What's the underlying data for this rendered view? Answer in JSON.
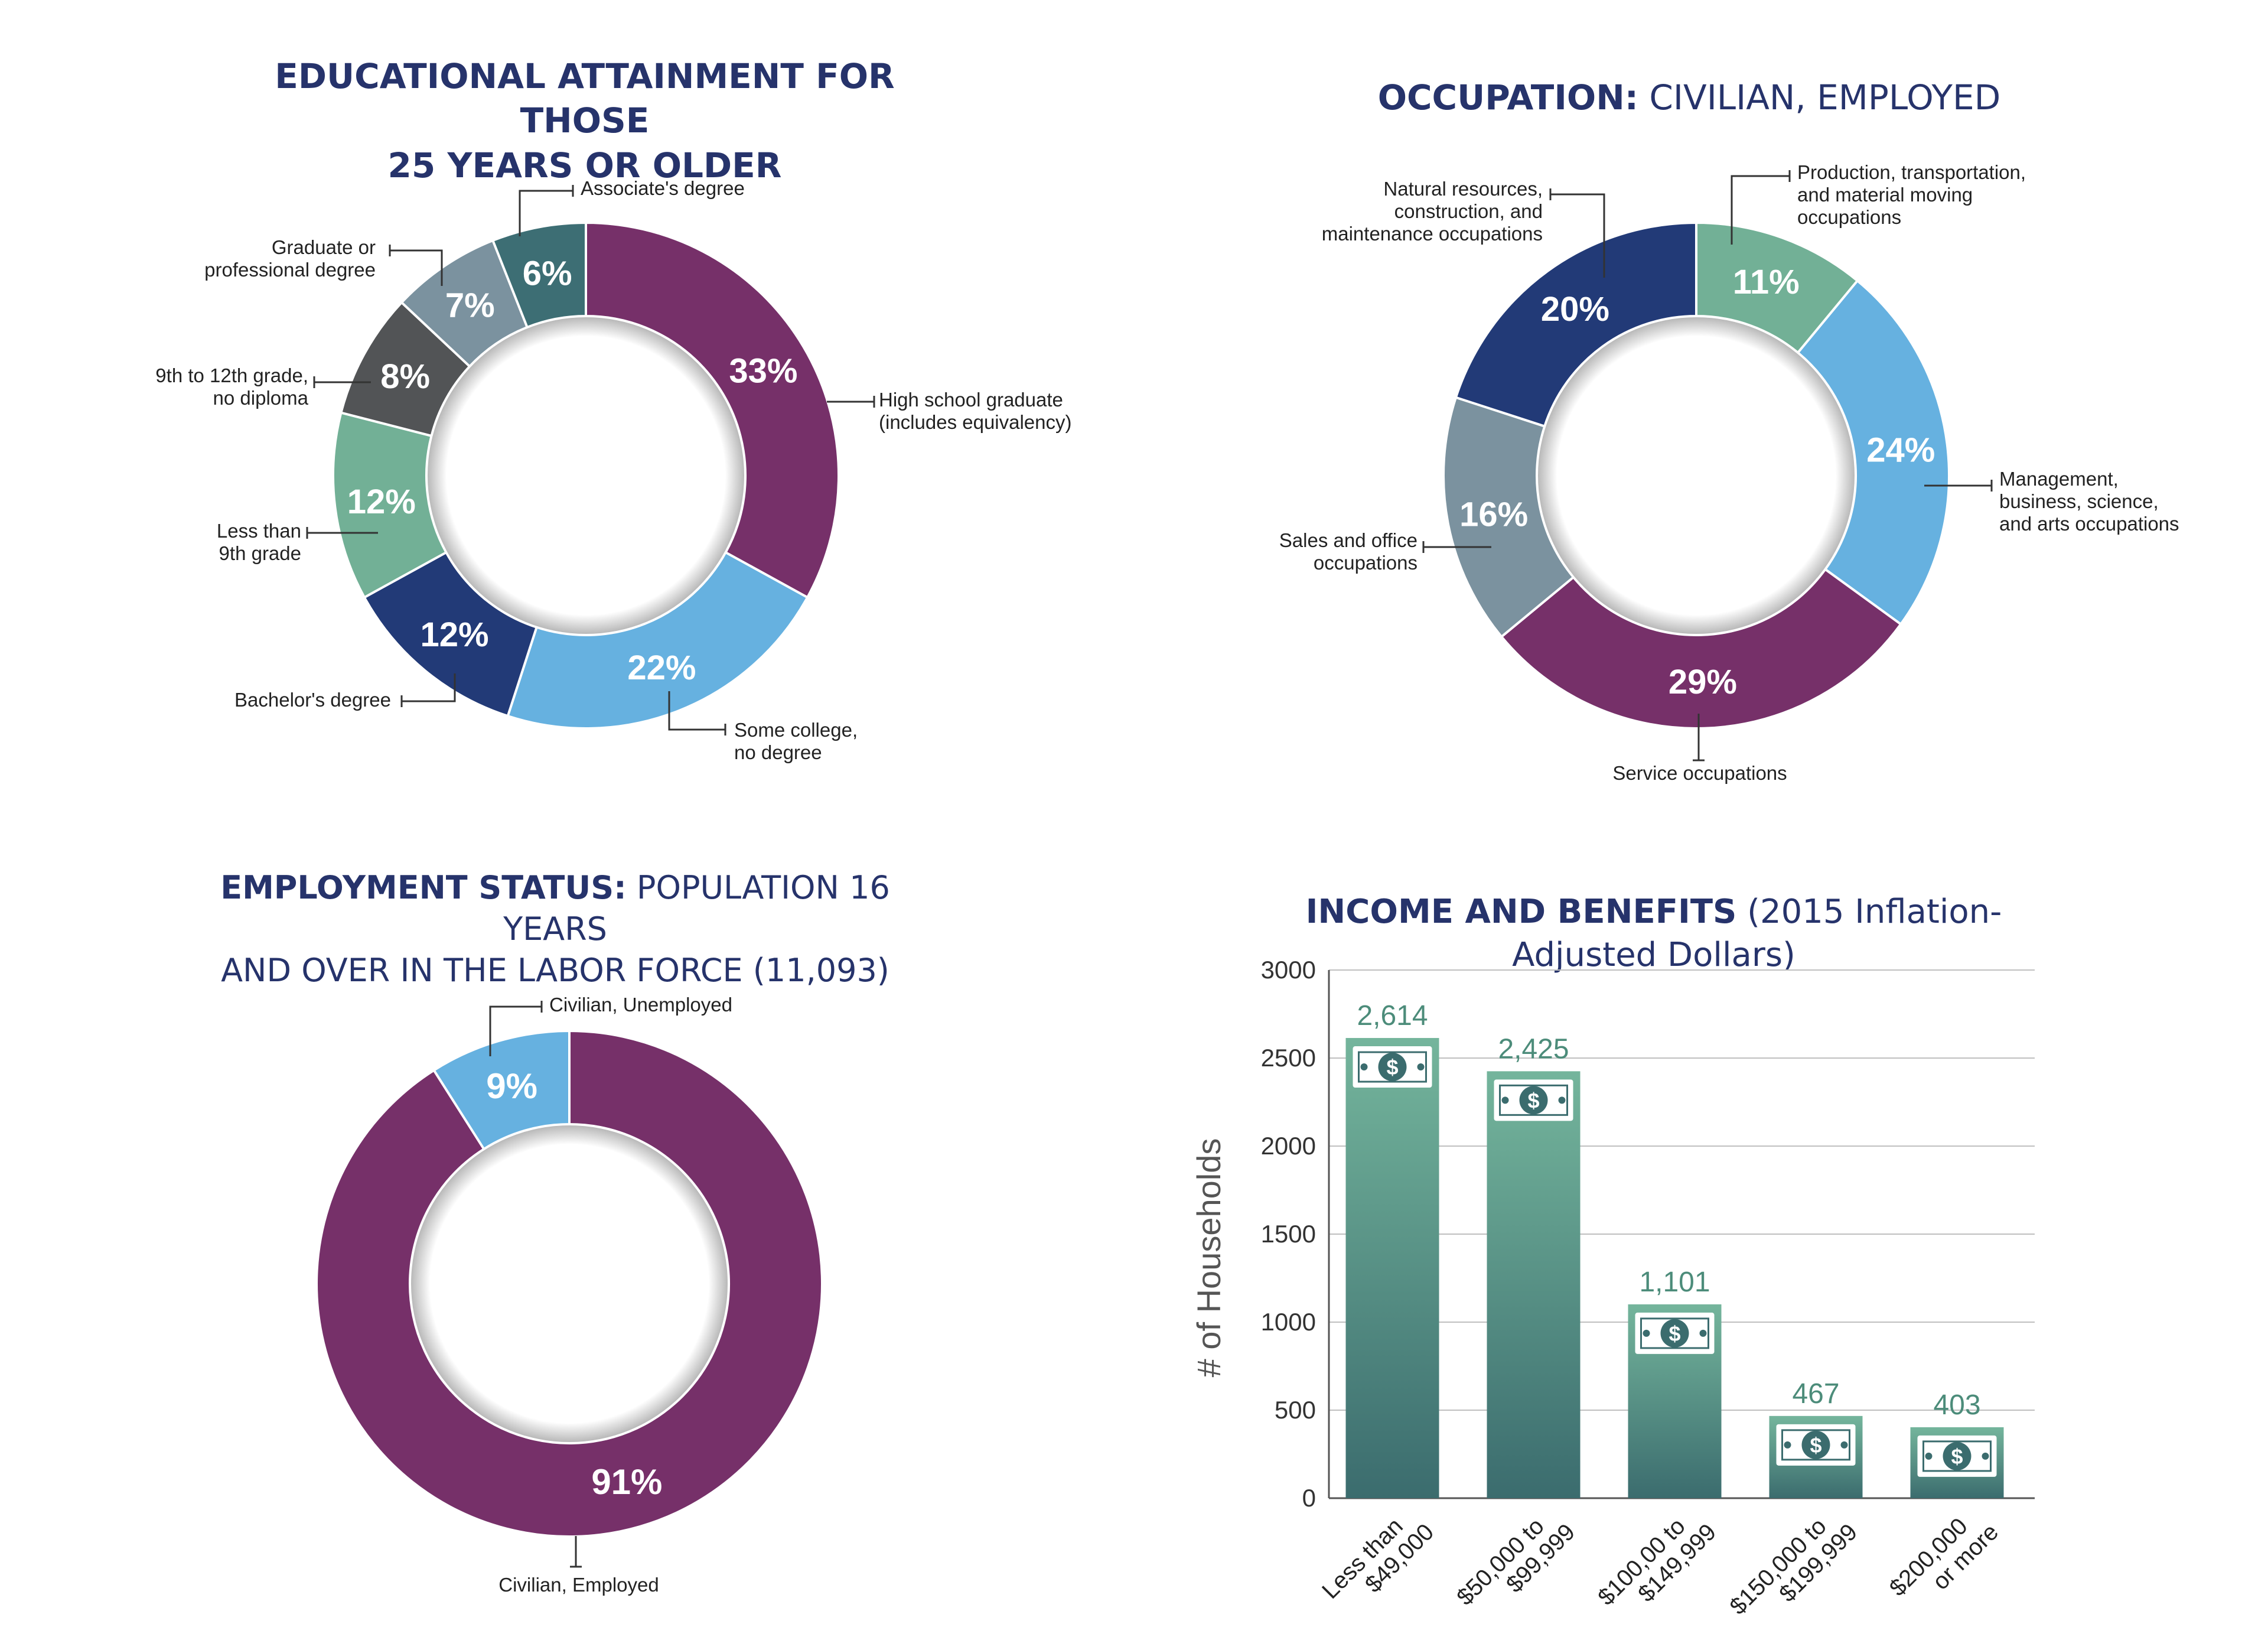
{
  "colors": {
    "title": "#26336b",
    "purple": "#763069",
    "light_blue": "#66b1e0",
    "navy": "#223a77",
    "green": "#72b096",
    "dark_gray": "#525456",
    "slate": "#7b929f",
    "teal": "#3d6e74",
    "bar_top": "#74b59c",
    "bar_bottom": "#3b6c6e"
  },
  "chart_data": [
    {
      "type": "pie",
      "title": "EDUCATIONAL ATTAINMENT FOR THOSE 25 YEARS OR OLDER",
      "title_lines": [
        "EDUCATIONAL ATTAINMENT FOR THOSE",
        "25 YEARS OR OLDER"
      ],
      "slices": [
        {
          "label": "High school graduate (includes equivalency)",
          "lines": [
            "High school graduate",
            "(includes equivalency)"
          ],
          "value": 33,
          "display": "33%",
          "color": "#763069"
        },
        {
          "label": "Some college, no degree",
          "lines": [
            "Some college,",
            "no degree"
          ],
          "value": 22,
          "display": "22%",
          "color": "#66b1e0"
        },
        {
          "label": "Bachelor's degree",
          "lines": [
            "Bachelor's degree"
          ],
          "value": 12,
          "display": "12%",
          "color": "#223a77"
        },
        {
          "label": "Less than 9th grade",
          "lines": [
            "Less than",
            "9th grade"
          ],
          "value": 12,
          "display": "12%",
          "color": "#72b096"
        },
        {
          "label": "9th to 12th grade, no diploma",
          "lines": [
            "9th to 12th grade,",
            "no diploma"
          ],
          "value": 8,
          "display": "8%",
          "color": "#525456"
        },
        {
          "label": "Graduate or professional degree",
          "lines": [
            "Graduate or",
            "professional degree"
          ],
          "value": 7,
          "display": "7%",
          "color": "#7b929f"
        },
        {
          "label": "Associate's degree",
          "lines": [
            "Associate's degree"
          ],
          "value": 6,
          "display": "6%",
          "color": "#3d6e74"
        }
      ]
    },
    {
      "type": "pie",
      "title": "OCCUPATION: CIVILIAN, EMPLOYED",
      "title_bold": "OCCUPATION:",
      "title_light": " CIVILIAN, EMPLOYED",
      "slices": [
        {
          "label": "Production, transportation, and material moving occupations",
          "lines": [
            "Production, transportation,",
            "and material moving",
            "occupations"
          ],
          "value": 11,
          "display": "11%",
          "color": "#72b096"
        },
        {
          "label": "Management, business, science, and arts occupations",
          "lines": [
            "Management,",
            "business, science,",
            "and arts occupations"
          ],
          "value": 24,
          "display": "24%",
          "color": "#66b1e0"
        },
        {
          "label": "Service occupations",
          "lines": [
            "Service occupations"
          ],
          "value": 29,
          "display": "29%",
          "color": "#763069"
        },
        {
          "label": "Sales and office occupations",
          "lines": [
            "Sales and office",
            "occupations"
          ],
          "value": 16,
          "display": "16%",
          "color": "#7b929f"
        },
        {
          "label": "Natural resources, construction, and maintenance occupations",
          "lines": [
            "Natural resources,",
            "construction, and",
            "maintenance occupations"
          ],
          "value": 20,
          "display": "20%",
          "color": "#223a77"
        }
      ]
    },
    {
      "type": "pie",
      "title": "EMPLOYMENT STATUS: POPULATION 16 YEARS AND OVER IN THE LABOR FORCE (11,093)",
      "title_bold": "EMPLOYMENT STATUS:",
      "title_light": " POPULATION 16 YEARS",
      "title_line2": "AND OVER IN THE LABOR FORCE (11,093)",
      "slices": [
        {
          "label": "Civilian, Employed",
          "lines": [
            "Civilian, Employed"
          ],
          "value": 91,
          "display": "91%",
          "color": "#763069"
        },
        {
          "label": "Civilian, Unemployed",
          "lines": [
            "Civilian, Unemployed"
          ],
          "value": 9,
          "display": "9%",
          "color": "#66b1e0"
        }
      ]
    },
    {
      "type": "bar",
      "title": "INCOME AND BENEFITS (2015 Inflation-Adjusted Dollars)",
      "title_bold": "INCOME AND BENEFITS",
      "title_light": " (2015 Inflation-Adjusted Dollars)",
      "ylabel": "# of Households",
      "xlabel": "",
      "ylim": [
        0,
        3000
      ],
      "yticks": [
        "0",
        "500",
        "1000",
        "1500",
        "2000",
        "2500",
        "3000"
      ],
      "categories": [
        [
          "Less than",
          "$49,000"
        ],
        [
          "$50,000 to",
          "$99,999"
        ],
        [
          "$100,00 to",
          "$149,999"
        ],
        [
          "$150,000 to",
          "$199,999"
        ],
        [
          "$200,000",
          "or more"
        ]
      ],
      "values": [
        2614,
        2425,
        1101,
        467,
        403
      ],
      "value_labels": [
        "2,614",
        "2,425",
        "1,101",
        "467",
        "403"
      ],
      "grid": true,
      "icon": "dollar-bill-icon"
    }
  ]
}
